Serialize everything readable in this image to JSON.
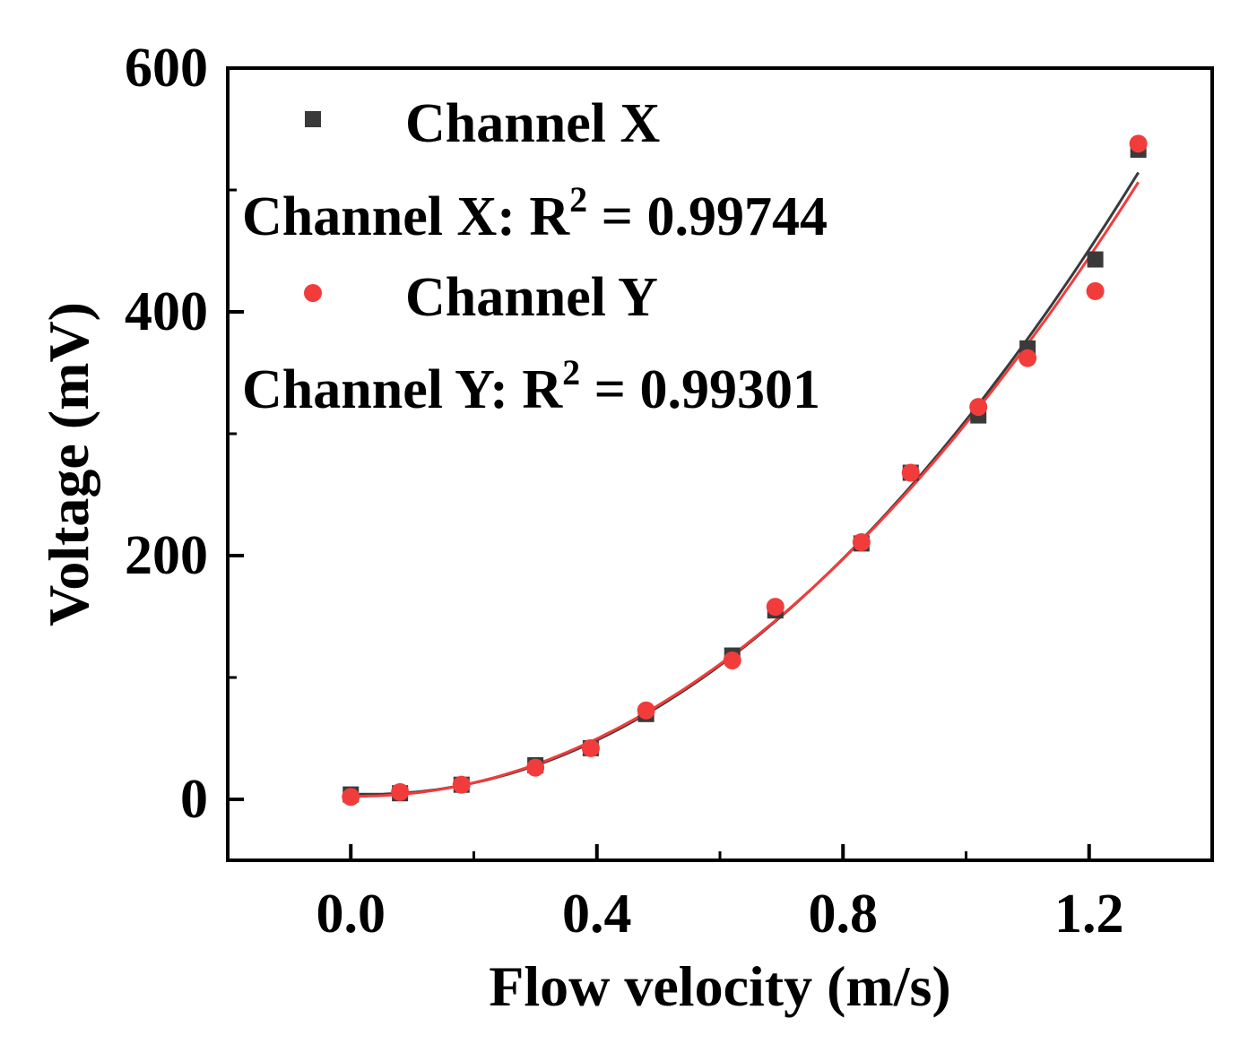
{
  "chart_data": {
    "type": "scatter",
    "title": "",
    "xlabel": "Flow velocity (m/s)",
    "ylabel": "Voltage (mV)",
    "xlim": [
      -0.2,
      1.4
    ],
    "ylim": [
      -50,
      600
    ],
    "xticks": [
      0.0,
      0.4,
      0.8,
      1.2
    ],
    "xtick_labels": [
      "0.0",
      "0.4",
      "0.8",
      "1.2"
    ],
    "yticks": [
      0,
      200,
      400,
      600
    ],
    "ytick_labels": [
      "0",
      "200",
      "400",
      "600"
    ],
    "legend_position": "top-left",
    "series": [
      {
        "name": "Channel X",
        "marker": "square",
        "color": "#3a3a3a",
        "fit_color": "#3a3a3a",
        "fit_label": "Channel X: R",
        "fit_sup": "2",
        "fit_value": " = 0.99744",
        "fit_type": "quadratic",
        "x": [
          0.0,
          0.08,
          0.18,
          0.3,
          0.39,
          0.48,
          0.62,
          0.69,
          0.83,
          0.91,
          1.02,
          1.1,
          1.21,
          1.28
        ],
        "y": [
          4,
          5,
          12,
          28,
          42,
          70,
          118,
          155,
          210,
          268,
          315,
          370,
          443,
          533
        ]
      },
      {
        "name": "Channel Y",
        "marker": "circle",
        "color": "#f23c3c",
        "fit_color": "#f23c3c",
        "fit_label": "Channel Y: R",
        "fit_sup": "2",
        "fit_value": " = 0.99301",
        "fit_type": "quadratic",
        "x": [
          0.0,
          0.08,
          0.18,
          0.3,
          0.39,
          0.48,
          0.62,
          0.69,
          0.83,
          0.91,
          1.02,
          1.1,
          1.21,
          1.28
        ],
        "y": [
          2,
          6,
          12,
          26,
          42,
          73,
          114,
          158,
          211,
          268,
          322,
          362,
          417,
          538
        ]
      }
    ]
  }
}
